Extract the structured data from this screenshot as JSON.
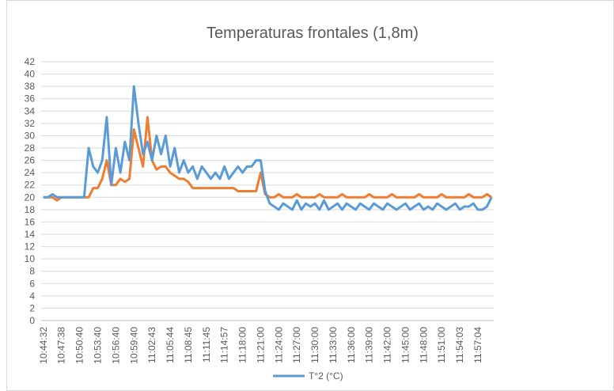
{
  "chart_data": {
    "type": "line",
    "title": "Temperaturas frontales (1,8m)",
    "categories": [
      "10:44:32",
      null,
      null,
      null,
      "10:47:38",
      null,
      null,
      null,
      "10:50:40",
      null,
      null,
      null,
      "10:53:40",
      null,
      null,
      null,
      "10:56:40",
      null,
      null,
      null,
      "10:59:40",
      null,
      null,
      null,
      "11:02:43",
      null,
      null,
      null,
      "11:05:44",
      null,
      null,
      null,
      "11:08:45",
      null,
      null,
      null,
      "11:11:45",
      null,
      null,
      null,
      "11:14:57",
      null,
      null,
      null,
      "11:18:00",
      null,
      null,
      null,
      "11:21:00",
      null,
      null,
      null,
      "11:24:00",
      null,
      null,
      null,
      "11:27:00",
      null,
      null,
      null,
      "11:30:00",
      null,
      null,
      null,
      "11:33:00",
      null,
      null,
      null,
      "11:36:00",
      null,
      null,
      null,
      "11:39:00",
      null,
      null,
      null,
      "11:42:00",
      null,
      null,
      null,
      "11:45:00",
      null,
      null,
      null,
      "11:48:00",
      null,
      null,
      null,
      "11:51:00",
      null,
      null,
      null,
      "11:54:03",
      null,
      null,
      null,
      "11:57:04",
      null,
      null,
      null
    ],
    "series": [
      {
        "name": "T°2 (°C)",
        "color": "#5b9bd5",
        "values": [
          20,
          20,
          20.5,
          20,
          20,
          20,
          20,
          20,
          20,
          20,
          28,
          25,
          24,
          26,
          33,
          22,
          28,
          24,
          29,
          26,
          38,
          32,
          27,
          29,
          26,
          30,
          27,
          30,
          25,
          28,
          24,
          26,
          24,
          25,
          23,
          25,
          24,
          23,
          24,
          23,
          25,
          23,
          24,
          25,
          24,
          25,
          25,
          26,
          26,
          21,
          19,
          18.5,
          18,
          19,
          18.5,
          18,
          19.5,
          18,
          19,
          18.5,
          19,
          18,
          19.5,
          18,
          18.5,
          19,
          18,
          19,
          18.5,
          18,
          19,
          18.5,
          18,
          19,
          18.5,
          18,
          19,
          18.5,
          18,
          18.5,
          19,
          18,
          18.5,
          19,
          18,
          18.5,
          18,
          19,
          18.5,
          18,
          18.5,
          19,
          18,
          18.5,
          18.5,
          19,
          18,
          18,
          18.5,
          20
        ]
      },
      {
        "color": "#ed7d31",
        "values": [
          20,
          20,
          20,
          19.5,
          20,
          20,
          20,
          20,
          20,
          20,
          20,
          21.5,
          21.5,
          23,
          26,
          22,
          22,
          23,
          22.5,
          23,
          31,
          28,
          25,
          33,
          26,
          24.5,
          25,
          25,
          24,
          23.5,
          23,
          23,
          22.5,
          21.5,
          21.5,
          21.5,
          21.5,
          21.5,
          21.5,
          21.5,
          21.5,
          21.5,
          21.5,
          21,
          21,
          21,
          21,
          21,
          24,
          20.5,
          20,
          20,
          20.5,
          20,
          20,
          20,
          20.5,
          20,
          20,
          20,
          20,
          20.5,
          20,
          20,
          20,
          20,
          20.5,
          20,
          20,
          20,
          20,
          20,
          20.5,
          20,
          20,
          20,
          20,
          20.5,
          20,
          20,
          20,
          20,
          20,
          20.5,
          20,
          20,
          20,
          20,
          20.5,
          20,
          20,
          20,
          20,
          20,
          20.5,
          20,
          20,
          20,
          20.5,
          20
        ]
      }
    ],
    "ylim": [
      0,
      42
    ],
    "yticks": [
      0,
      2,
      4,
      6,
      8,
      10,
      12,
      14,
      16,
      18,
      20,
      22,
      24,
      26,
      28,
      30,
      32,
      34,
      36,
      38,
      40,
      42
    ],
    "grid": true
  }
}
